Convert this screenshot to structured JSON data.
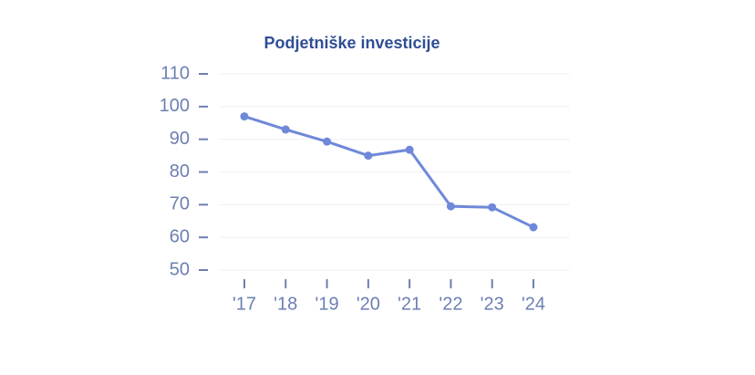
{
  "chart_data": {
    "type": "line",
    "title": "Podjetniške investicije",
    "categories": [
      "'17",
      "'18",
      "'19",
      "'20",
      "'21",
      "'22",
      "'23",
      "'24"
    ],
    "values": [
      97,
      93,
      89.3,
      85,
      86.8,
      69.5,
      69.2,
      63.1
    ],
    "color": "#6f88d9",
    "ylim": [
      50,
      110
    ],
    "yticks": [
      50,
      60,
      70,
      80,
      90,
      100,
      110
    ],
    "grid": true
  }
}
